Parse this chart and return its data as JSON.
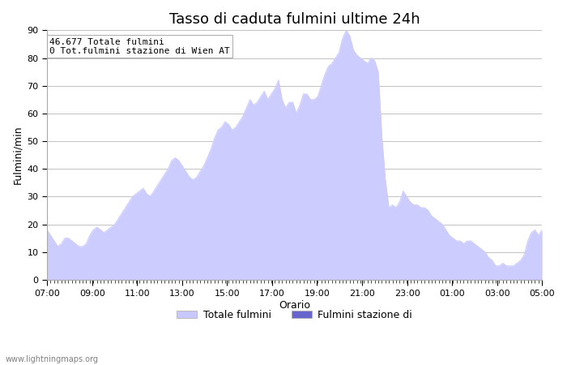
{
  "title": "Tasso di caduta fulmini ultime 24h",
  "xlabel": "Orario",
  "ylabel": "Fulmini/min",
  "annotation": "46.677 Totale fulmini\n0 Tot.fulmini stazione di Wien AT",
  "legend_label1": "Totale fulmini",
  "legend_label2": "Fulmini stazione di",
  "legend_color1": "#c8c8ff",
  "legend_color2": "#6666cc",
  "fill_color": "#ccccff",
  "ylim": [
    0,
    90
  ],
  "yticks": [
    0,
    10,
    20,
    30,
    40,
    50,
    60,
    70,
    80,
    90
  ],
  "xtick_labels": [
    "07:00",
    "09:00",
    "11:00",
    "13:00",
    "15:00",
    "17:00",
    "19:00",
    "21:00",
    "23:00",
    "01:00",
    "03:00",
    "05:00"
  ],
  "watermark": "www.lightningmaps.org",
  "y_values": [
    18,
    16,
    14,
    12,
    13,
    15,
    15,
    14,
    13,
    12,
    12,
    13,
    16,
    18,
    19,
    18,
    17,
    18,
    19,
    20,
    22,
    24,
    26,
    28,
    30,
    31,
    32,
    33,
    31,
    30,
    32,
    34,
    36,
    38,
    40,
    43,
    44,
    43,
    41,
    39,
    37,
    36,
    37,
    39,
    41,
    44,
    47,
    51,
    54,
    55,
    57,
    56,
    54,
    55,
    57,
    59,
    62,
    65,
    63,
    64,
    66,
    68,
    65,
    67,
    69,
    72,
    65,
    62,
    64,
    64,
    60,
    63,
    67,
    67,
    65,
    65,
    66,
    70,
    74,
    77,
    78,
    80,
    82,
    87,
    90,
    88,
    83,
    81,
    80,
    79,
    78,
    80,
    79,
    75,
    52,
    36,
    26,
    27,
    26,
    28,
    32,
    30,
    28,
    27,
    27,
    26,
    26,
    25,
    23,
    22,
    21,
    20,
    18,
    16,
    15,
    14,
    14,
    13,
    14,
    14,
    13,
    12,
    11,
    10,
    8,
    7,
    5,
    5,
    6,
    5,
    5,
    5,
    6,
    7,
    9,
    14,
    17,
    18,
    16,
    18
  ],
  "background_color": "#ffffff",
  "grid_color": "#aaaaaa",
  "font_size_title": 13,
  "font_size_axis": 9,
  "font_size_tick": 8,
  "font_size_annotation": 8,
  "font_size_watermark": 7
}
